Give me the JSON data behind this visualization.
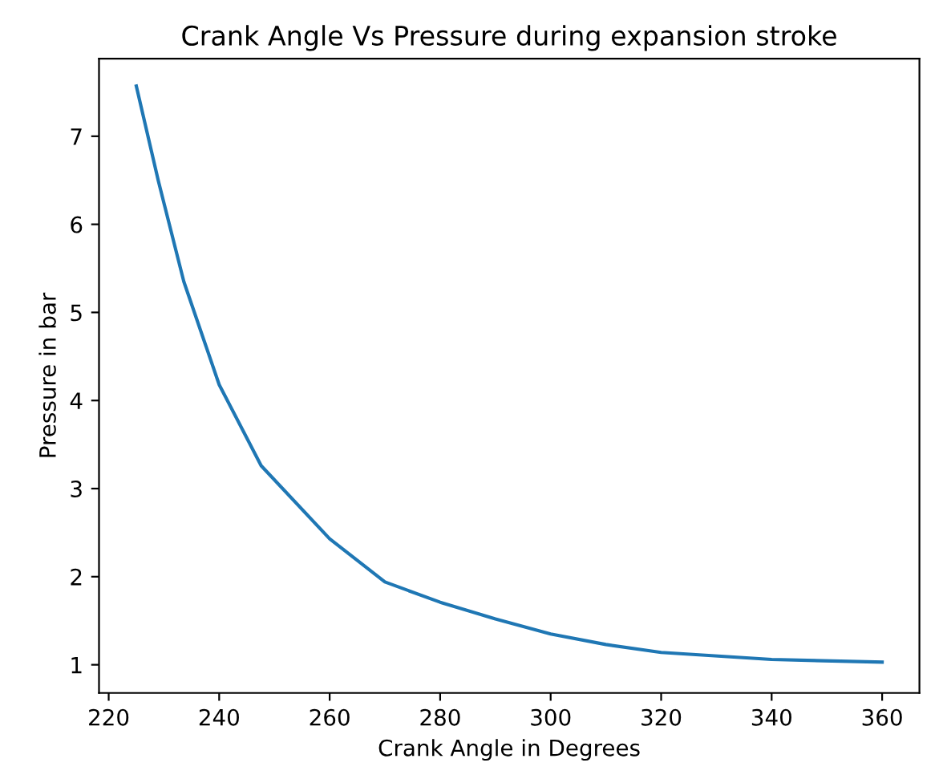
{
  "chart_data": {
    "type": "line",
    "title": "Crank Angle Vs Pressure during expansion stroke",
    "xlabel": "Crank Angle in Degrees",
    "ylabel": "Pressure in bar",
    "series": [
      {
        "color": "#1f77b4",
        "x": [
          225,
          229,
          233.6,
          240,
          247.6,
          260,
          270,
          280,
          290,
          300,
          310,
          320,
          340,
          360
        ],
        "values": [
          7.57,
          6.49,
          5.35,
          4.18,
          3.26,
          2.43,
          1.94,
          1.71,
          1.52,
          1.35,
          1.23,
          1.14,
          1.06,
          1.03
        ]
      }
    ],
    "xlim": [
      218.25,
      366.75
    ],
    "ylim": [
      0.68,
      7.88
    ],
    "xticks": [
      220,
      240,
      260,
      280,
      300,
      320,
      340,
      360
    ],
    "yticks": [
      1,
      2,
      3,
      4,
      5,
      6,
      7
    ],
    "grid": false,
    "legend": false,
    "marker": "none",
    "line_style": "solid"
  }
}
